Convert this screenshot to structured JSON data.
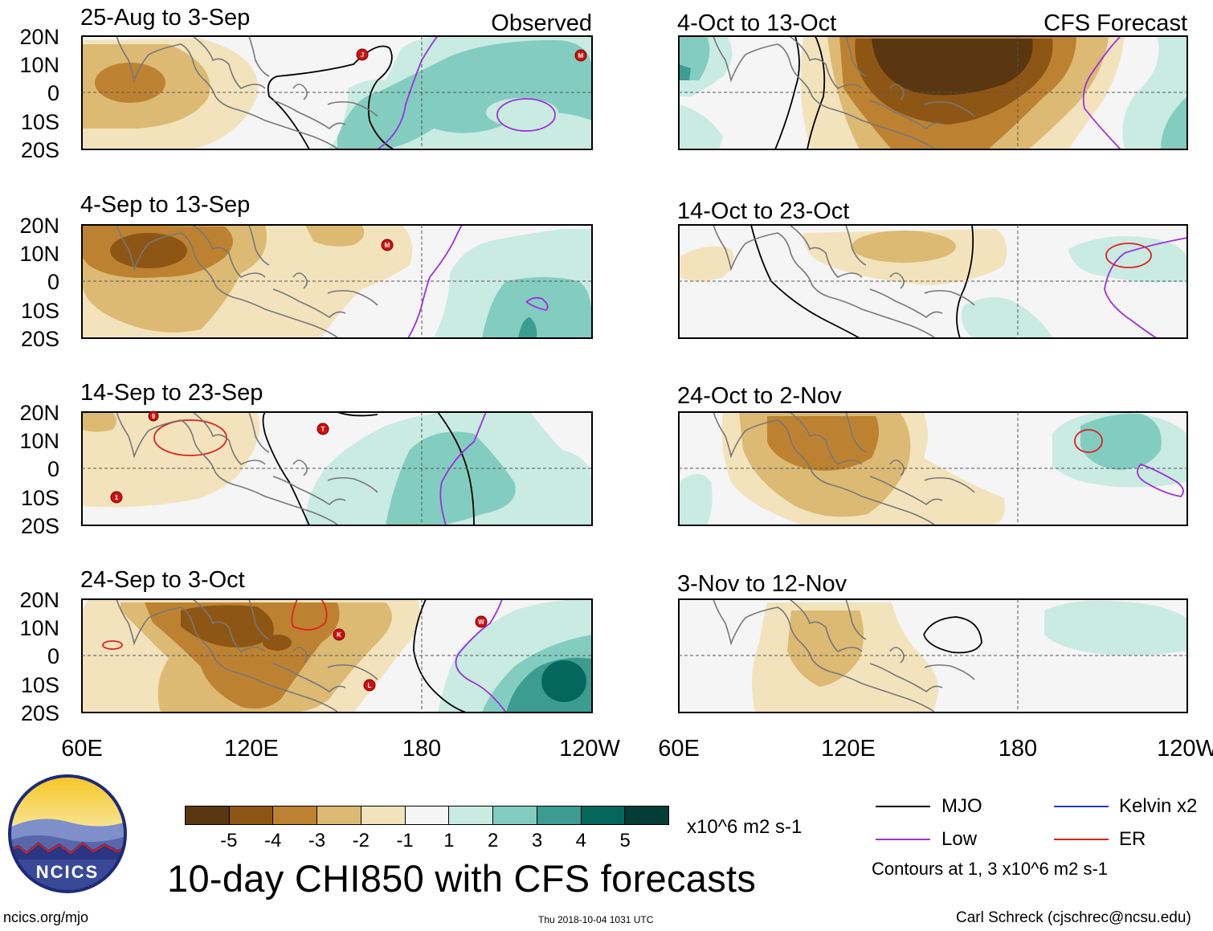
{
  "observed_label": "Observed",
  "forecast_label": "CFS Forecast",
  "lat_labels": [
    "20N",
    "10N",
    "0",
    "10S",
    "20S"
  ],
  "lon_labels": [
    "60E",
    "120E",
    "180",
    "120W"
  ],
  "panels": [
    {
      "title": "25-Aug to 3-Sep",
      "column": "observed",
      "storms": [
        "J",
        "M"
      ]
    },
    {
      "title": "4-Sep to 13-Sep",
      "column": "observed",
      "storms": [
        "M"
      ]
    },
    {
      "title": "14-Sep to 23-Sep",
      "column": "observed",
      "storms": [
        "9",
        "T",
        "1"
      ]
    },
    {
      "title": "24-Sep to 3-Oct",
      "column": "observed",
      "storms": [
        "W",
        "K",
        "L"
      ]
    },
    {
      "title": "4-Oct to 13-Oct",
      "column": "forecast",
      "storms": []
    },
    {
      "title": "14-Oct to 23-Oct",
      "column": "forecast",
      "storms": []
    },
    {
      "title": "24-Oct to 2-Nov",
      "column": "forecast",
      "storms": []
    },
    {
      "title": "3-Nov to 12-Nov",
      "column": "forecast",
      "storms": []
    }
  ],
  "colorbar": {
    "colors": [
      "#5a3711",
      "#8e5614",
      "#bd8231",
      "#dcba74",
      "#f3e3bc",
      "#f5f5f5",
      "#c9ebe2",
      "#83cdc0",
      "#3c9c91",
      "#05665d",
      "#033d36"
    ],
    "ticks": [
      "-5",
      "-4",
      "-3",
      "-2",
      "-1",
      "1",
      "2",
      "3",
      "4",
      "5"
    ],
    "units": "x10^6 m2 s-1"
  },
  "main_title": "10-day CHI850 with CFS forecasts",
  "legend": [
    {
      "label": "MJO",
      "color": "#000000"
    },
    {
      "label": "Kelvin x2",
      "color": "#1f3fd6"
    },
    {
      "label": "Low",
      "color": "#9b30e0"
    },
    {
      "label": "ER",
      "color": "#e02020"
    }
  ],
  "contour_note": "Contours at 1, 3 x10^6 m2 s-1",
  "logo_text": "NCICS",
  "footer": {
    "left": "ncics.org/mjo",
    "middle": "Thu 2018-10-04 1031 UTC",
    "right": "Carl Schreck (cjschrec@ncsu.edu)"
  }
}
